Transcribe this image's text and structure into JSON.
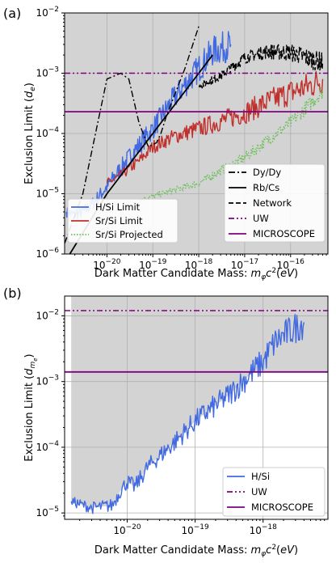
{
  "chart_data": [
    {
      "panel": "(a)",
      "type": "line",
      "xlabel": "Dark Matter Candidate Mass: m_φ c²(eV)",
      "ylabel": "Exclusion Limit (d_e)",
      "xscale": "log",
      "yscale": "log",
      "xlim": [
        1.2e-21,
        6.5e-16
      ],
      "ylim": [
        1e-06,
        0.01
      ],
      "x_ticks": [
        "10^-20",
        "10^-19",
        "10^-18",
        "10^-17",
        "10^-16"
      ],
      "y_ticks": [
        "10^-6",
        "10^-5",
        "10^-4",
        "10^-3",
        "10^-2"
      ],
      "grid": true,
      "legend_left": {
        "placement": "lower-left",
        "entries": [
          "H/Si Limit",
          "Sr/Si Limit",
          "Sr/Si Projected"
        ]
      },
      "legend_right": {
        "placement": "lower-right",
        "entries": [
          "Dy/Dy",
          "Rb/Cs",
          "Network",
          "UW",
          "MICROSCOPE"
        ]
      },
      "series": [
        {
          "name": "H/Si Limit",
          "color": "#4169e1",
          "style": "solid",
          "noise": 0.55,
          "x": [
            1.3e-21,
            2e-21,
            3e-21,
            5e-21,
            1e-20,
            3e-20,
            1e-19,
            3e-19,
            1e-18,
            2e-18,
            5e-18
          ],
          "y": [
            5e-06,
            4.5e-06,
            5e-06,
            7e-06,
            1.3e-05,
            4e-05,
            0.00012,
            0.0004,
            0.0012,
            0.0023,
            0.003
          ]
        },
        {
          "name": "Sr/Si Limit",
          "color": "#c0302c",
          "style": "solid",
          "noise": 0.5,
          "x": [
            1e-20,
            2e-20,
            5e-20,
            1e-19,
            3e-19,
            1e-18,
            3e-18,
            1e-17,
            3e-17,
            1e-16,
            3e-16,
            5e-16
          ],
          "y": [
            1.5e-05,
            2e-05,
            3.5e-05,
            6e-05,
            9e-05,
            0.00012,
            0.00016,
            0.00022,
            0.00033,
            0.00048,
            0.00065,
            0.0008
          ]
        },
        {
          "name": "Sr/Si Projected",
          "color": "#6bbf59",
          "style": "dotted",
          "noise": 0.25,
          "x": [
            5e-20,
            1e-19,
            1e-18,
            1e-17,
            1e-16,
            5e-16
          ],
          "y": [
            8e-06,
            9e-06,
            1.5e-05,
            4e-05,
            0.00015,
            0.0005
          ]
        },
        {
          "name": "Dy/Dy",
          "color": "#000000",
          "style": "dashdot",
          "noise": 0,
          "x": [
            1.2e-21,
            3e-21,
            1e-20,
            2e-20,
            3e-20,
            5e-20,
            8e-20,
            1.2e-19,
            1.5e-19,
            2e-19,
            5e-19,
            1e-18
          ],
          "y": [
            1.5e-06,
            1e-05,
            0.0008,
            0.001,
            0.0008,
            0.00015,
            6e-05,
            7e-05,
            0.0001,
            0.0002,
            0.0012,
            0.006
          ]
        },
        {
          "name": "Rb/Cs",
          "color": "#000000",
          "style": "solid",
          "noise": 0,
          "x": [
            1.3e-21,
            1e-20,
            1e-19,
            1e-18,
            2e-18
          ],
          "y": [
            8e-07,
            1e-05,
            0.0001,
            0.001,
            0.002
          ]
        },
        {
          "name": "Network",
          "color": "#000000",
          "style": "dashed",
          "noise": 0.35,
          "x": [
            1e-18,
            3e-18,
            1e-17,
            3e-17,
            1e-16,
            5e-16
          ],
          "y": [
            0.0006,
            0.0009,
            0.0018,
            0.0023,
            0.0022,
            0.0015
          ]
        },
        {
          "name": "UW",
          "color": "#7f007f",
          "style": "dashdotdot",
          "noise": 0,
          "x": [
            1.2e-21,
            6.5e-16
          ],
          "y": [
            0.001,
            0.001
          ]
        },
        {
          "name": "MICROSCOPE",
          "color": "#7f007f",
          "style": "solid",
          "noise": 0,
          "x": [
            1.2e-21,
            6.5e-16
          ],
          "y": [
            0.00023,
            0.00023
          ]
        }
      ]
    },
    {
      "panel": "(b)",
      "type": "line",
      "xlabel": "Dark Matter Candidate Mass: m_φ c²(eV)",
      "ylabel": "Exclusion Limit (d_me)",
      "xscale": "log",
      "yscale": "log",
      "xlim": [
        1.2e-21,
        9e-18
      ],
      "ylim": [
        8e-06,
        0.02
      ],
      "x_ticks": [
        "10^-20",
        "10^-19",
        "10^-18"
      ],
      "y_ticks": [
        "10^-5",
        "10^-4",
        "10^-3",
        "10^-2"
      ],
      "grid": true,
      "legend": {
        "placement": "lower-right",
        "entries": [
          "H/Si",
          "UW",
          "MICROSCOPE"
        ]
      },
      "series": [
        {
          "name": "H/Si",
          "color": "#4169e1",
          "style": "solid",
          "noise": 0.5,
          "x": [
            1.5e-21,
            3e-21,
            6e-21,
            8e-21,
            1e-20,
            1.3e-20,
            2e-20,
            5e-20,
            1e-19,
            3e-19,
            1e-18,
            1.5e-18,
            2e-18,
            4e-18
          ],
          "y": [
            1.5e-05,
            1.2e-05,
            1.3e-05,
            2.2e-05,
            3e-05,
            2.5e-05,
            5e-05,
            0.00012,
            0.00025,
            0.0006,
            0.002,
            0.004,
            0.005,
            0.008
          ]
        },
        {
          "name": "UW",
          "color": "#7f007f",
          "style": "dashdotdot",
          "noise": 0,
          "x": [
            1.2e-21,
            9e-18
          ],
          "y": [
            0.012,
            0.012
          ]
        },
        {
          "name": "MICROSCOPE",
          "color": "#7f007f",
          "style": "solid",
          "noise": 0,
          "x": [
            1.2e-21,
            9e-18
          ],
          "y": [
            0.0014,
            0.0014
          ]
        }
      ]
    }
  ]
}
